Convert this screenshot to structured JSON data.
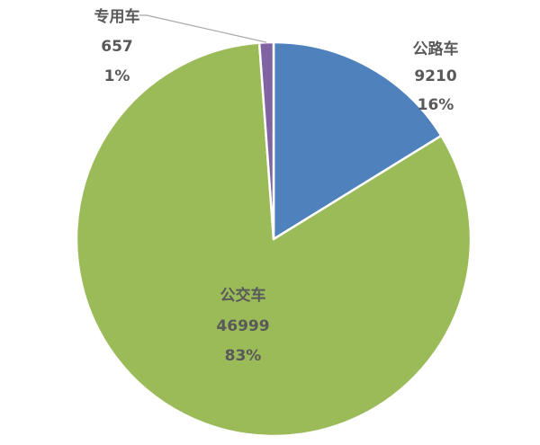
{
  "chart_data": {
    "type": "pie",
    "title": "",
    "slices": [
      {
        "name": "公路车",
        "value": 9210,
        "percent": "16%",
        "color": "#4f81bd"
      },
      {
        "name": "公交车",
        "value": 46999,
        "percent": "83%",
        "color": "#9bbb59"
      },
      {
        "name": "专用车",
        "value": 657,
        "percent": "1%",
        "color": "#8064a2"
      }
    ],
    "start_angle_deg": 0,
    "direction": "clockwise",
    "border_color": "#ffffff",
    "leader_line_color": "#a6a6a6",
    "label_color": "#595959"
  }
}
